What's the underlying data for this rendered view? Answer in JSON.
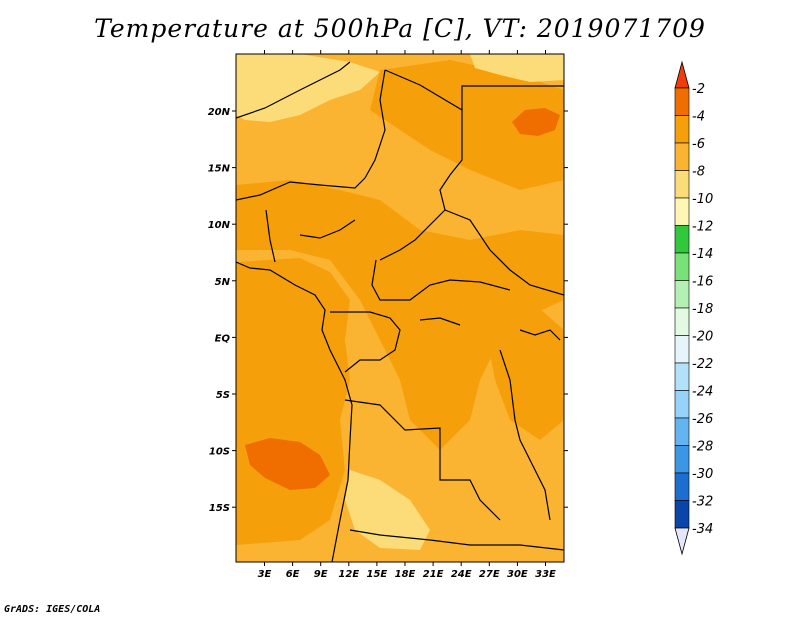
{
  "title": "Temperature at 500hPa [C], VT: 2019071709",
  "footer": "GrADS: IGES/COLA",
  "map": {
    "lon_labels": [
      "3E",
      "6E",
      "9E",
      "12E",
      "15E",
      "18E",
      "21E",
      "24E",
      "27E",
      "30E",
      "33E"
    ],
    "lat_labels": [
      "20N",
      "15N",
      "10N",
      "5N",
      "EQ",
      "5S",
      "10S",
      "15S"
    ]
  },
  "colorbar": {
    "labels": [
      "-2",
      "-4",
      "-6",
      "-8",
      "-10",
      "-12",
      "-14",
      "-16",
      "-18",
      "-20",
      "-22",
      "-24",
      "-26",
      "-28",
      "-30",
      "-32",
      "-34"
    ],
    "colors": [
      "#f03c0a",
      "#f06e00",
      "#f5a00a",
      "#fab432",
      "#fcdc78",
      "#fff5b4",
      "#32c83c",
      "#78e178",
      "#b4f0b4",
      "#e1fae1",
      "#e6f5fa",
      "#b4e1fa",
      "#96d2fa",
      "#64b4f0",
      "#3c96e6",
      "#1e6ed2",
      "#0a46aa",
      "#0a1e78"
    ]
  }
}
